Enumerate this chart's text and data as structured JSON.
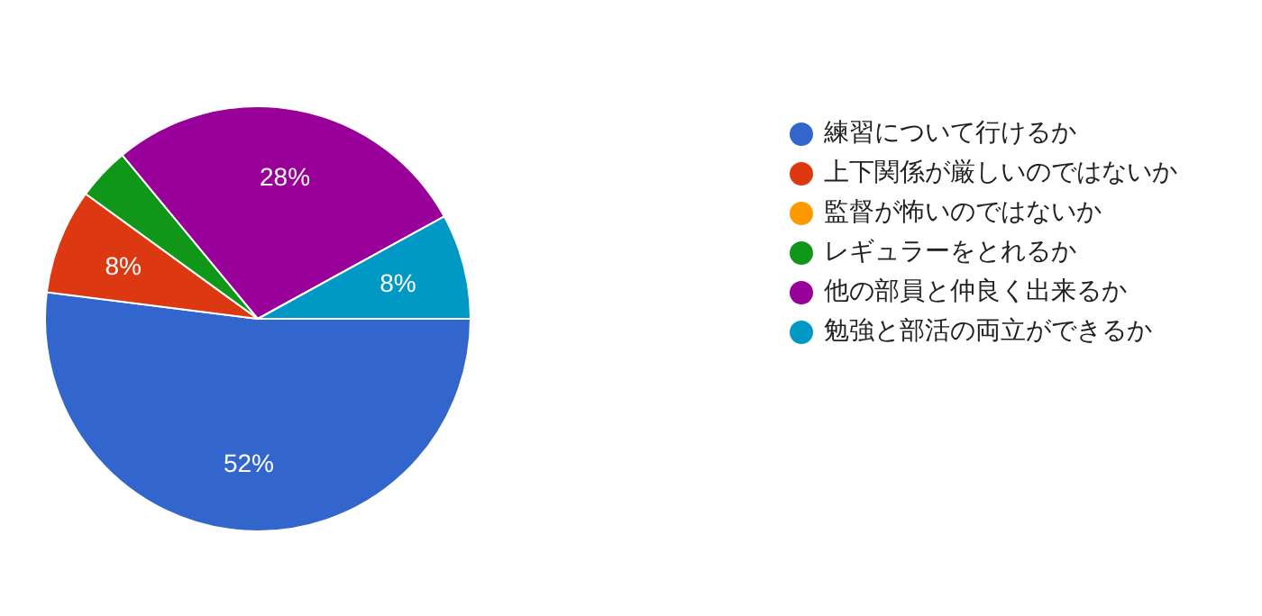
{
  "chart_data": {
    "type": "pie",
    "categories": [
      "練習について行けるか",
      "上下関係が厳しいのではないか",
      "監督が怖いのではないか",
      "レギュラーをとれるか",
      "他の部員と仲良く出来るか",
      "勉強と部活の両立ができるか"
    ],
    "values": [
      52,
      8,
      0,
      4,
      28,
      8
    ],
    "colors": [
      "#3366cc",
      "#dc3912",
      "#ff9900",
      "#109618",
      "#990099",
      "#0099c6"
    ],
    "value_labels": [
      "52%",
      "8%",
      null,
      null,
      "28%",
      "8%"
    ],
    "legend": "right"
  }
}
